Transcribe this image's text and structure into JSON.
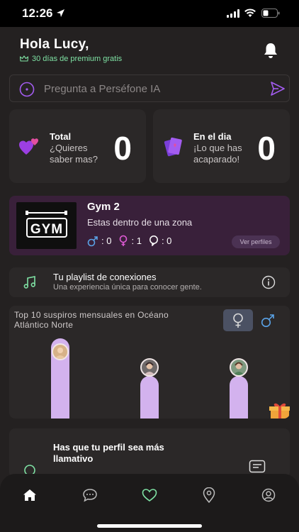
{
  "status_bar": {
    "time": "12:26"
  },
  "header": {
    "greeting": "Hola Lucy,",
    "premium_text": "30 días de premium gratis"
  },
  "search": {
    "placeholder": "Pregunta a Perséfone IA"
  },
  "stats": {
    "total": {
      "title": "Total",
      "subtitle": "¿Quieres saber mas?",
      "value": "0"
    },
    "day": {
      "title": "En el dia",
      "subtitle": "¡Lo que has acaparado!",
      "value": "0"
    }
  },
  "zone": {
    "logo_text": "GYM",
    "title": "Gym 2",
    "subtitle": "Estas dentro de una zona",
    "male_count": ": 0",
    "female_count": ": 1",
    "chat_count": ": 0",
    "button_label": "Ver perfiles"
  },
  "playlist": {
    "title": "Tu playlist de conexiones",
    "subtitle": "Una experiencia única para conocer gente."
  },
  "top10": {
    "title": "Top 10 suspiros mensuales en Océano Atlántico Norte",
    "selected_gender": "female"
  },
  "tip": {
    "title": "Has que tu perfil sea más llamativo"
  },
  "colors": {
    "background": "#242121",
    "card": "#2b2828",
    "zone_card": "#39203a",
    "accent_purple": "#a35cf0",
    "bar": "#d3b2ee",
    "premium_green": "#7fe2a4",
    "male_blue": "#5aa2e6",
    "female_pink": "#e05ad6"
  },
  "tabs": [
    "home-icon",
    "chat-icon",
    "heart-icon",
    "map-pin-icon",
    "profile-icon"
  ]
}
